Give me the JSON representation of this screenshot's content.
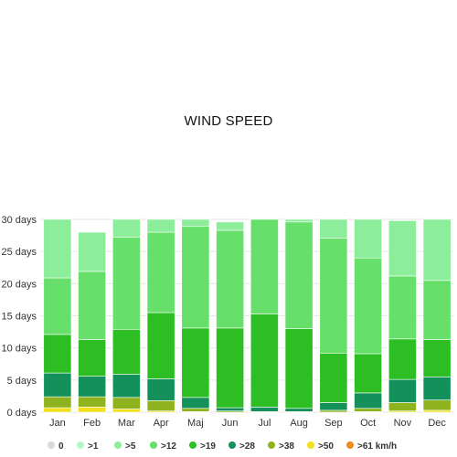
{
  "chart_data": {
    "type": "bar",
    "stacked": true,
    "title": "WIND SPEED",
    "xlabel": "",
    "ylabel": "",
    "ylim": [
      0,
      30
    ],
    "y_ticks": [
      0,
      5,
      10,
      15,
      20,
      25,
      30
    ],
    "y_tick_suffix": " days",
    "categories": [
      "Jan",
      "Feb",
      "Mar",
      "Apr",
      "Maj",
      "Jun",
      "Jul",
      "Aug",
      "Sep",
      "Oct",
      "Nov",
      "Dec"
    ],
    "grid": true,
    "legend_position": "bottom",
    "series": [
      {
        "name": "0",
        "color": "#d9d9d9",
        "values": [
          0,
          0,
          0,
          0,
          0,
          0,
          0,
          0,
          0,
          0,
          0,
          0
        ]
      },
      {
        "name": ">61 km/h",
        "color": "#f08c1e",
        "values": [
          0,
          0,
          0,
          0,
          0,
          0,
          0,
          0,
          0,
          0,
          0,
          0
        ]
      },
      {
        "name": ">50",
        "color": "#f0e01e",
        "values": [
          0.7,
          0.8,
          0.5,
          0.2,
          0.1,
          0,
          0,
          0,
          0,
          0.1,
          0.2,
          0.3
        ]
      },
      {
        "name": ">38",
        "color": "#8fb31e",
        "values": [
          1.7,
          1.6,
          1.8,
          1.6,
          0.5,
          0.2,
          0.1,
          0.1,
          0.3,
          0.5,
          1.3,
          1.6
        ]
      },
      {
        "name": ">28",
        "color": "#14905a",
        "values": [
          3.7,
          3.2,
          3.6,
          3.4,
          1.7,
          0.5,
          0.7,
          0.5,
          1.2,
          2.4,
          3.6,
          3.6
        ]
      },
      {
        "name": ">19",
        "color": "#2dbe23",
        "values": [
          6,
          5.7,
          7,
          10.3,
          10.8,
          12.4,
          14.5,
          12.4,
          7.7,
          6.1,
          6.3,
          5.8
        ]
      },
      {
        "name": ">12",
        "color": "#66e06a",
        "values": [
          8.8,
          10.6,
          14.3,
          12.5,
          15.8,
          15.2,
          14.7,
          16.6,
          17.9,
          14.9,
          9.8,
          9.2
        ]
      },
      {
        "name": ">5",
        "color": "#8ced9a",
        "values": [
          9.1,
          6.1,
          2.8,
          2,
          1.1,
          1.3,
          0,
          0.4,
          2.9,
          6,
          8.6,
          9.5
        ]
      },
      {
        "name": ">1",
        "color": "#b4f7c8",
        "values": [
          0,
          0,
          0,
          0,
          0,
          0,
          0,
          0,
          0,
          0,
          0,
          0
        ]
      }
    ],
    "legend_order": [
      "0",
      ">1",
      ">5",
      ">12",
      ">19",
      ">28",
      ">38",
      ">50",
      ">61 km/h"
    ]
  }
}
